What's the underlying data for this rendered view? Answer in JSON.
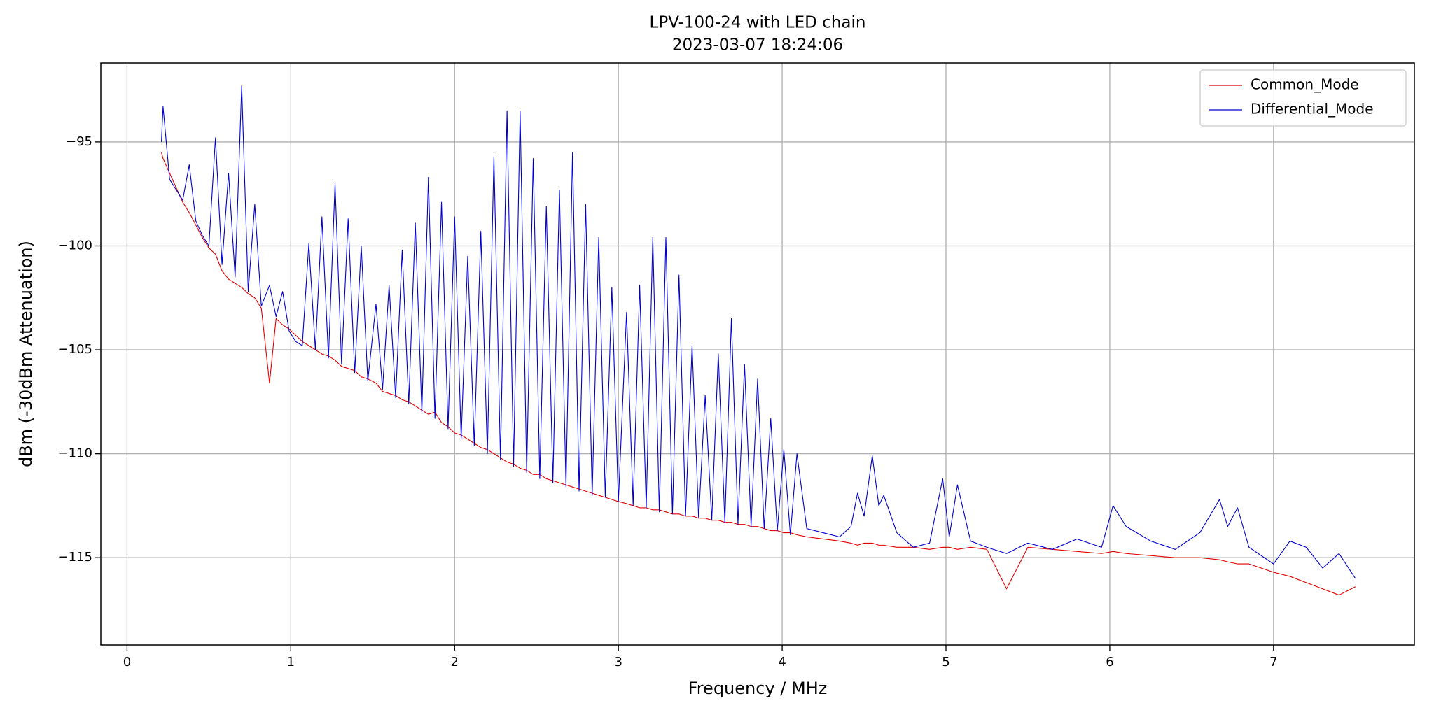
{
  "chart_data": {
    "type": "line",
    "title": "LPV-100-24 with LED chain",
    "subtitle": "2023-03-07 18:24:06",
    "xlabel": "Frequency / MHz",
    "ylabel": "dBm (-30dBm Attenuation)",
    "xlim": [
      -0.16,
      7.86
    ],
    "ylim": [
      -119.2,
      -91.2
    ],
    "xticks": [
      0,
      1,
      2,
      3,
      4,
      5,
      6,
      7
    ],
    "yticks": [
      {
        "value": -115,
        "label": "−115"
      },
      {
        "value": -110,
        "label": "−110"
      },
      {
        "value": -105,
        "label": "−105"
      },
      {
        "value": -100,
        "label": "−100"
      },
      {
        "value": -95,
        "label": "−95"
      }
    ],
    "grid": true,
    "legend": "upper right",
    "x": [
      0.21,
      0.22,
      0.26,
      0.3,
      0.34,
      0.38,
      0.42,
      0.46,
      0.5,
      0.54,
      0.58,
      0.62,
      0.66,
      0.7,
      0.74,
      0.78,
      0.82,
      0.87,
      0.91,
      0.95,
      0.99,
      1.03,
      1.07,
      1.11,
      1.15,
      1.19,
      1.23,
      1.27,
      1.31,
      1.35,
      1.39,
      1.43,
      1.47,
      1.52,
      1.56,
      1.6,
      1.64,
      1.68,
      1.72,
      1.76,
      1.8,
      1.84,
      1.88,
      1.92,
      1.96,
      2.0,
      2.04,
      2.08,
      2.12,
      2.16,
      2.2,
      2.24,
      2.28,
      2.32,
      2.36,
      2.4,
      2.44,
      2.48,
      2.52,
      2.56,
      2.6,
      2.64,
      2.68,
      2.72,
      2.76,
      2.8,
      2.84,
      2.88,
      2.92,
      2.96,
      3.0,
      3.05,
      3.09,
      3.13,
      3.17,
      3.21,
      3.25,
      3.29,
      3.33,
      3.37,
      3.41,
      3.45,
      3.49,
      3.53,
      3.57,
      3.61,
      3.65,
      3.69,
      3.73,
      3.77,
      3.81,
      3.85,
      3.89,
      3.93,
      3.97,
      4.01,
      4.05,
      4.09,
      4.15,
      4.25,
      4.35,
      4.42,
      4.46,
      4.5,
      4.55,
      4.59,
      4.62,
      4.7,
      4.8,
      4.9,
      4.98,
      5.02,
      5.07,
      5.15,
      5.25,
      5.37,
      5.5,
      5.65,
      5.8,
      5.95,
      6.02,
      6.1,
      6.25,
      6.4,
      6.55,
      6.67,
      6.72,
      6.78,
      6.85,
      7.0,
      7.1,
      7.2,
      7.3,
      7.4,
      7.5
    ],
    "series": [
      {
        "name": "Common_Mode",
        "color": "#e00000",
        "values": [
          -95.5,
          -95.8,
          -96.5,
          -97.2,
          -97.9,
          -98.4,
          -99.0,
          -99.6,
          -100.1,
          -100.4,
          -101.2,
          -101.6,
          -101.8,
          -102.0,
          -102.3,
          -102.5,
          -103.0,
          -106.6,
          -103.5,
          -103.8,
          -104.0,
          -104.3,
          -104.6,
          -104.8,
          -105.0,
          -105.2,
          -105.3,
          -105.5,
          -105.8,
          -105.9,
          -106.0,
          -106.3,
          -106.4,
          -106.6,
          -107.0,
          -107.1,
          -107.2,
          -107.4,
          -107.5,
          -107.7,
          -107.9,
          -108.1,
          -108.0,
          -108.5,
          -108.7,
          -109.0,
          -109.1,
          -109.3,
          -109.5,
          -109.7,
          -109.8,
          -110.0,
          -110.2,
          -110.4,
          -110.5,
          -110.7,
          -110.8,
          -111.0,
          -111.0,
          -111.2,
          -111.3,
          -111.4,
          -111.5,
          -111.6,
          -111.7,
          -111.8,
          -111.9,
          -112.0,
          -112.1,
          -112.2,
          -112.3,
          -112.4,
          -112.5,
          -112.6,
          -112.6,
          -112.7,
          -112.7,
          -112.8,
          -112.9,
          -112.9,
          -113.0,
          -113.0,
          -113.1,
          -113.1,
          -113.2,
          -113.2,
          -113.3,
          -113.3,
          -113.4,
          -113.4,
          -113.5,
          -113.5,
          -113.6,
          -113.7,
          -113.7,
          -113.8,
          -113.8,
          -113.9,
          -114.0,
          -114.1,
          -114.2,
          -114.3,
          -114.4,
          -114.3,
          -114.3,
          -114.4,
          -114.4,
          -114.5,
          -114.5,
          -114.6,
          -114.5,
          -114.5,
          -114.6,
          -114.5,
          -114.6,
          -116.5,
          -114.5,
          -114.6,
          -114.7,
          -114.8,
          -114.7,
          -114.8,
          -114.9,
          -115.0,
          -115.0,
          -115.1,
          -115.2,
          -115.3,
          -115.3,
          -115.7,
          -115.9,
          -116.2,
          -116.5,
          -116.8,
          -116.4
        ]
      },
      {
        "name": "Differential_Mode",
        "color": "#0000d0",
        "values": [
          -95.0,
          -93.3,
          -96.8,
          -97.3,
          -97.8,
          -96.1,
          -98.8,
          -99.5,
          -100.0,
          -94.8,
          -100.9,
          -96.5,
          -101.5,
          -92.3,
          -102.2,
          -98.0,
          -102.9,
          -101.9,
          -103.4,
          -102.2,
          -104.1,
          -104.6,
          -104.8,
          -99.9,
          -105.0,
          -98.6,
          -105.4,
          -97.0,
          -105.7,
          -98.7,
          -106.1,
          -100.0,
          -106.5,
          -102.8,
          -106.9,
          -101.9,
          -107.3,
          -100.2,
          -107.6,
          -98.9,
          -108.0,
          -96.7,
          -108.3,
          -97.9,
          -108.8,
          -98.6,
          -109.3,
          -100.5,
          -109.6,
          -99.3,
          -110.0,
          -95.7,
          -110.3,
          -93.5,
          -110.6,
          -93.5,
          -110.9,
          -95.8,
          -111.2,
          -98.1,
          -111.4,
          -97.3,
          -111.6,
          -95.5,
          -111.8,
          -98.0,
          -112.0,
          -99.6,
          -112.1,
          -102.0,
          -112.3,
          -103.2,
          -112.5,
          -101.9,
          -112.6,
          -99.6,
          -112.8,
          -99.6,
          -112.9,
          -101.4,
          -113.0,
          -104.8,
          -113.1,
          -107.2,
          -113.2,
          -105.2,
          -113.3,
          -103.5,
          -113.4,
          -105.7,
          -113.5,
          -106.4,
          -113.6,
          -108.3,
          -113.7,
          -109.8,
          -113.9,
          -110.0,
          -113.6,
          -113.8,
          -114.0,
          -113.5,
          -111.9,
          -113.0,
          -110.1,
          -112.5,
          -112.0,
          -113.8,
          -114.5,
          -114.3,
          -111.2,
          -114.0,
          -111.5,
          -114.2,
          -114.5,
          -114.8,
          -114.3,
          -114.6,
          -114.1,
          -114.5,
          -112.5,
          -113.5,
          -114.2,
          -114.6,
          -113.8,
          -112.2,
          -113.5,
          -112.6,
          -114.5,
          -115.3,
          -114.2,
          -114.5,
          -115.5,
          -114.8,
          -116.0
        ]
      }
    ]
  }
}
